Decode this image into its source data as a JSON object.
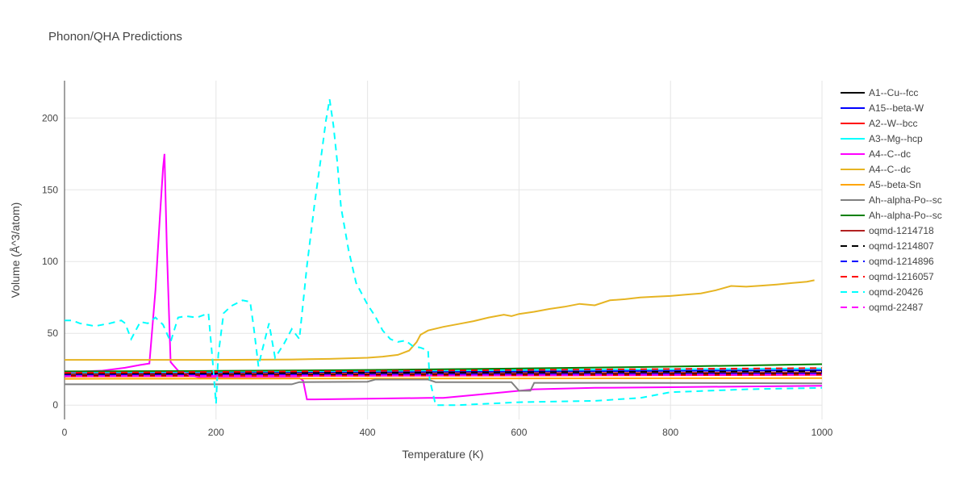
{
  "chart_data": {
    "type": "line",
    "title": "Phonon/QHA Predictions",
    "xlabel": "Temperature (K)",
    "ylabel": "Volume (Å^3/atom)",
    "xlim": [
      0,
      1000
    ],
    "ylim": [
      -10,
      226
    ],
    "xticks": [
      0,
      200,
      400,
      600,
      800,
      1000
    ],
    "yticks": [
      0,
      50,
      100,
      150,
      200
    ],
    "grid": true,
    "legend_position": "right",
    "series": [
      {
        "name": "A1--Cu--fcc",
        "color": "#000000",
        "dash": "solid",
        "x": [
          0,
          1000
        ],
        "y": [
          21.0,
          21.9
        ]
      },
      {
        "name": "A15--beta-W",
        "color": "#0000ff",
        "dash": "solid",
        "x": [
          0,
          1000
        ],
        "y": [
          22.2,
          24.3
        ]
      },
      {
        "name": "A2--W--bcc",
        "color": "#ff0000",
        "dash": "solid",
        "x": [
          0,
          1000
        ],
        "y": [
          20.0,
          21.0
        ]
      },
      {
        "name": "A3--Mg--hcp",
        "color": "#00ffff",
        "dash": "solid",
        "x": [
          0,
          1000
        ],
        "y": [
          22.8,
          25.5
        ]
      },
      {
        "name": "A4--C--dc",
        "color": "#ff00ff",
        "dash": "solid",
        "x": [
          0,
          50,
          80,
          100,
          112,
          120,
          126,
          130,
          132,
          135,
          140,
          150,
          165,
          180,
          200,
          250,
          300,
          310,
          315,
          320,
          330,
          400,
          480,
          500,
          520,
          540,
          580,
          620,
          700,
          800,
          900,
          1000
        ],
        "y": [
          23,
          24,
          26,
          28,
          29,
          80,
          132,
          165,
          175,
          110,
          30,
          24,
          21,
          19,
          19,
          19,
          19,
          19,
          17,
          4,
          4,
          4.5,
          5,
          5,
          6,
          7,
          9,
          11,
          12,
          12.5,
          13,
          13.5
        ]
      },
      {
        "name": "A4--C--dc",
        "color": "#e6b422",
        "dash": "solid",
        "x": [
          0,
          100,
          200,
          300,
          350,
          400,
          420,
          440,
          455,
          465,
          470,
          480,
          500,
          520,
          540,
          560,
          580,
          590,
          600,
          620,
          640,
          660,
          680,
          700,
          720,
          740,
          760,
          780,
          800,
          820,
          840,
          860,
          880,
          900,
          920,
          940,
          960,
          980,
          990
        ],
        "y": [
          31.5,
          31.5,
          31.5,
          31.8,
          32.2,
          33,
          33.8,
          35,
          38,
          44,
          49,
          52,
          54.5,
          56.5,
          58.5,
          61,
          63,
          62,
          63.5,
          65,
          67,
          68.5,
          70.5,
          69.5,
          73,
          73.8,
          75,
          75.5,
          76,
          77,
          77.8,
          80,
          83,
          82.5,
          83.2,
          84,
          85,
          86,
          87
        ]
      },
      {
        "name": "A5--beta-Sn",
        "color": "#ffa500",
        "dash": "solid",
        "x": [
          0,
          1000
        ],
        "y": [
          18.3,
          18.8
        ]
      },
      {
        "name": "Ah--alpha-Po--sc",
        "color": "#808080",
        "dash": "solid",
        "x": [
          0,
          100,
          200,
          300,
          310,
          400,
          410,
          480,
          490,
          500,
          590,
          600,
          615,
          620,
          700,
          800,
          900,
          1000
        ],
        "y": [
          14.5,
          14.5,
          14.5,
          14.5,
          16.0,
          16.3,
          17.8,
          17.8,
          16.0,
          16.0,
          16.0,
          10.0,
          10.0,
          15.5,
          15.5,
          15.4,
          15.3,
          15.2
        ]
      },
      {
        "name": "Ah--alpha-Po--sc",
        "color": "#008000",
        "dash": "solid",
        "x": [
          0,
          200,
          400,
          600,
          800,
          1000
        ],
        "y": [
          23.5,
          23.8,
          24.5,
          25.5,
          26.8,
          28.5
        ]
      },
      {
        "name": "oqmd-1214718",
        "color": "#b22222",
        "dash": "solid",
        "x": [
          0,
          1000
        ],
        "y": [
          21.5,
          22.8
        ]
      },
      {
        "name": "oqmd-1214807",
        "color": "#000000",
        "dash": "dash",
        "x": [
          0,
          1000
        ],
        "y": [
          21.8,
          23.6
        ]
      },
      {
        "name": "oqmd-1214896",
        "color": "#0000ff",
        "dash": "dash",
        "x": [
          0,
          1000
        ],
        "y": [
          20.8,
          22.0
        ]
      },
      {
        "name": "oqmd-1216057",
        "color": "#ff0000",
        "dash": "dash",
        "x": [
          0,
          1000
        ],
        "y": [
          22.5,
          25.8
        ]
      },
      {
        "name": "oqmd-20426",
        "color": "#00ffff",
        "dash": "dash",
        "x": [
          0,
          10,
          20,
          40,
          60,
          75,
          80,
          88,
          92,
          100,
          110,
          120,
          130,
          140,
          150,
          160,
          175,
          190,
          196,
          200,
          203,
          210,
          220,
          235,
          245,
          250,
          256,
          260,
          270,
          278,
          290,
          300,
          310,
          320,
          330,
          340,
          345,
          350,
          355,
          360,
          365,
          375,
          385,
          400,
          410,
          420,
          430,
          440,
          450,
          460,
          470,
          480,
          482,
          490,
          520,
          560,
          600,
          700,
          760,
          800,
          900,
          1000
        ],
        "y": [
          59,
          59,
          57,
          55,
          57,
          59,
          57,
          46,
          50,
          58,
          57,
          61,
          56,
          44,
          61,
          62,
          61,
          64,
          28,
          1,
          35,
          64,
          69,
          73,
          72,
          53,
          27,
          36,
          57,
          33,
          43,
          53,
          46,
          97,
          140,
          178,
          198,
          213,
          195,
          170,
          138,
          108,
          85,
          70,
          62,
          52,
          46,
          44,
          45,
          41,
          40,
          38,
          18,
          0,
          0,
          1,
          2,
          3,
          5,
          9,
          11,
          12
        ]
      },
      {
        "name": "oqmd-22487",
        "color": "#ff00ff",
        "dash": "dash",
        "x": [
          0,
          1000
        ],
        "y": [
          20.2,
          21.2
        ]
      }
    ]
  }
}
